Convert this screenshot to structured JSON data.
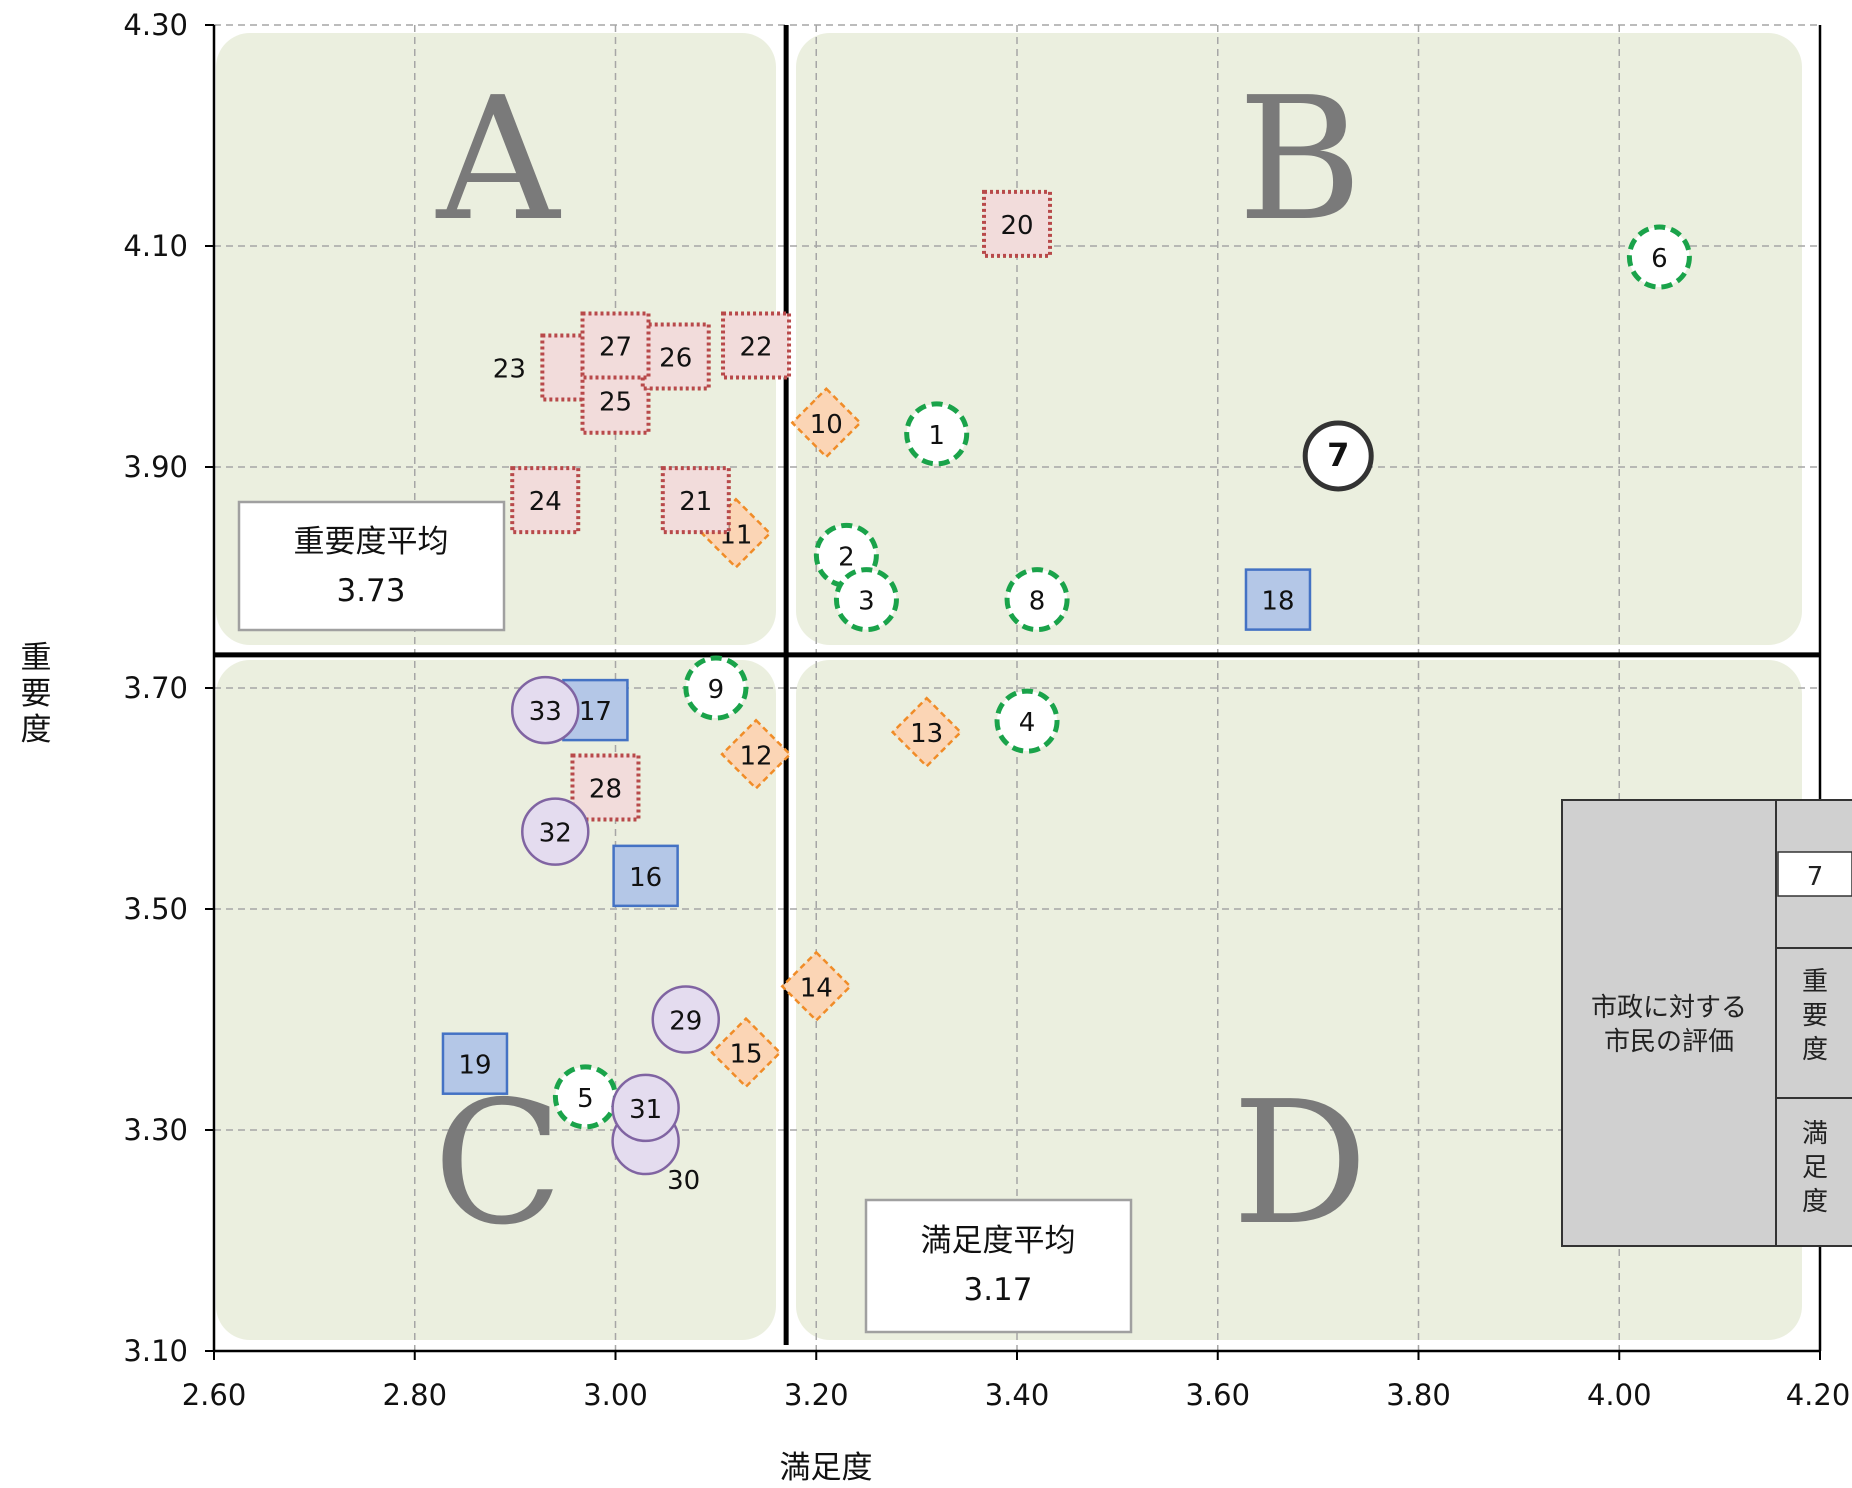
{
  "chart_data": {
    "type": "scatter",
    "xlabel": "満足度",
    "ylabel": "重要度",
    "xlim": [
      2.6,
      4.2
    ],
    "ylim": [
      3.1,
      4.3
    ],
    "xticks": [
      "2.60",
      "2.80",
      "3.00",
      "3.20",
      "3.40",
      "3.60",
      "3.80",
      "4.00",
      "4.20"
    ],
    "yticks": [
      "3.10",
      "3.30",
      "3.50",
      "3.70",
      "3.90",
      "4.10",
      "4.30"
    ],
    "grid": true,
    "quadrants": [
      "A",
      "B",
      "C",
      "D"
    ],
    "averages": {
      "importance": {
        "label": "重要度平均",
        "value": 3.73,
        "value_text": "3.73"
      },
      "satisfaction": {
        "label": "満足度平均",
        "value": 3.17,
        "value_text": "3.17"
      }
    },
    "legend": {
      "title": "市政に対する市民の評価",
      "sample_label": "7",
      "row_importance": "重要度",
      "row_satisfaction": "満足度"
    },
    "points": [
      {
        "id": "1",
        "x": 3.32,
        "y": 3.93,
        "marker": "dashed-circle"
      },
      {
        "id": "2",
        "x": 3.23,
        "y": 3.82,
        "marker": "dashed-circle"
      },
      {
        "id": "3",
        "x": 3.25,
        "y": 3.78,
        "marker": "dashed-circle"
      },
      {
        "id": "4",
        "x": 3.41,
        "y": 3.67,
        "marker": "dashed-circle"
      },
      {
        "id": "5",
        "x": 2.97,
        "y": 3.33,
        "marker": "dashed-circle"
      },
      {
        "id": "6",
        "x": 4.04,
        "y": 4.09,
        "marker": "dashed-circle"
      },
      {
        "id": "7",
        "x": 3.72,
        "y": 3.91,
        "marker": "bold-circle"
      },
      {
        "id": "8",
        "x": 3.42,
        "y": 3.78,
        "marker": "dashed-circle"
      },
      {
        "id": "9",
        "x": 3.1,
        "y": 3.7,
        "marker": "dashed-circle"
      },
      {
        "id": "10",
        "x": 3.21,
        "y": 3.94,
        "marker": "diamond"
      },
      {
        "id": "11",
        "x": 3.12,
        "y": 3.84,
        "marker": "diamond"
      },
      {
        "id": "12",
        "x": 3.14,
        "y": 3.64,
        "marker": "diamond"
      },
      {
        "id": "13",
        "x": 3.31,
        "y": 3.66,
        "marker": "diamond"
      },
      {
        "id": "14",
        "x": 3.2,
        "y": 3.43,
        "marker": "diamond"
      },
      {
        "id": "15",
        "x": 3.13,
        "y": 3.37,
        "marker": "diamond"
      },
      {
        "id": "16",
        "x": 3.03,
        "y": 3.53,
        "marker": "square"
      },
      {
        "id": "17",
        "x": 2.98,
        "y": 3.68,
        "marker": "square"
      },
      {
        "id": "18",
        "x": 3.66,
        "y": 3.78,
        "marker": "square"
      },
      {
        "id": "19",
        "x": 2.86,
        "y": 3.36,
        "marker": "square"
      },
      {
        "id": "20",
        "x": 3.4,
        "y": 4.12,
        "marker": "dotted-square"
      },
      {
        "id": "21",
        "x": 3.08,
        "y": 3.87,
        "marker": "dotted-square"
      },
      {
        "id": "22",
        "x": 3.14,
        "y": 4.01,
        "marker": "dotted-square"
      },
      {
        "id": "23",
        "x": 2.96,
        "y": 3.99,
        "marker": "dotted-square"
      },
      {
        "id": "24",
        "x": 2.93,
        "y": 3.87,
        "marker": "dotted-square"
      },
      {
        "id": "25",
        "x": 3.0,
        "y": 3.96,
        "marker": "dotted-square"
      },
      {
        "id": "26",
        "x": 3.06,
        "y": 4.0,
        "marker": "dotted-square"
      },
      {
        "id": "27",
        "x": 3.0,
        "y": 4.01,
        "marker": "dotted-square"
      },
      {
        "id": "28",
        "x": 2.99,
        "y": 3.61,
        "marker": "dotted-square"
      },
      {
        "id": "29",
        "x": 3.07,
        "y": 3.4,
        "marker": "circle"
      },
      {
        "id": "30",
        "x": 3.03,
        "y": 3.29,
        "marker": "circle"
      },
      {
        "id": "31",
        "x": 3.03,
        "y": 3.32,
        "marker": "circle"
      },
      {
        "id": "32",
        "x": 2.94,
        "y": 3.57,
        "marker": "circle"
      },
      {
        "id": "33",
        "x": 2.93,
        "y": 3.68,
        "marker": "circle"
      }
    ]
  },
  "colors": {
    "quadrant_fill": "#ebefdf",
    "grid": "#a6a6a6",
    "dashed_circle_stroke": "#1aa34a",
    "diamond_fill": "#fbd5b5",
    "diamond_stroke": "#f08c28",
    "square_fill": "#b4c7e7",
    "square_stroke": "#4472c4",
    "dotted_square_fill": "#f2dcdb",
    "dotted_square_stroke": "#b8494a",
    "circle_fill": "#e4dcef",
    "circle_stroke": "#8064a2",
    "bold_circle_stroke": "#333333",
    "legend_fill": "#d0d0d0"
  }
}
